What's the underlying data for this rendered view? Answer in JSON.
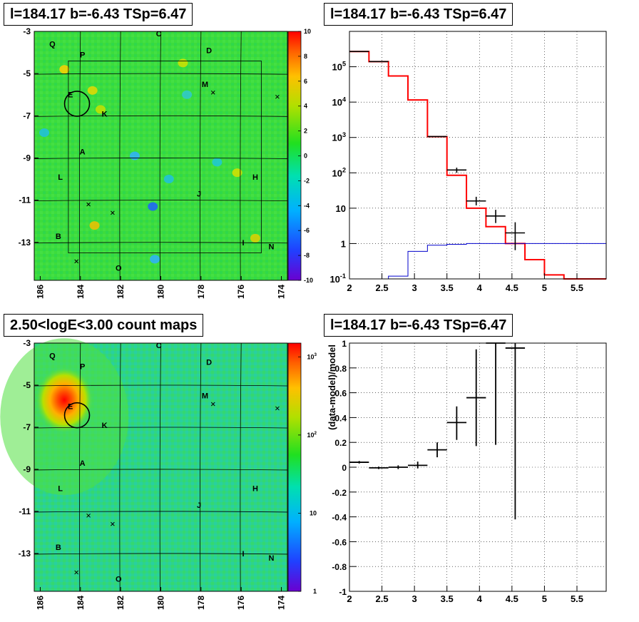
{
  "titles": {
    "top_left": "l=184.17 b=-6.43 TSp=6.47",
    "top_right": "l=184.17 b=-6.43 TSp=6.47",
    "bottom_left": "2.50<logE<3.00 count maps",
    "bottom_right": "l=184.17 b=-6.43 TSp=6.47"
  },
  "chart_data": [
    {
      "type": "heatmap",
      "name": "residual map",
      "title": "l=184.17 b=-6.43 TSp=6.47",
      "xticks": [
        "186",
        "184",
        "182",
        "180",
        "178",
        "176",
        "174"
      ],
      "yticks": [
        "-3",
        "-5",
        "-7",
        "-9",
        "-11",
        "-13"
      ],
      "xlim": [
        186.3,
        173.7
      ],
      "ylim": [
        -14.8,
        -3.0
      ],
      "colorbar": {
        "ticks": [
          "10",
          "8",
          "6",
          "4",
          "2",
          "0",
          "-2",
          "-4",
          "-6",
          "-8",
          "-10"
        ],
        "range": [
          -10,
          10
        ],
        "scale": "linear"
      },
      "source_labels": [
        {
          "label": "Q",
          "l": 185.4,
          "b": -3.6
        },
        {
          "label": "P",
          "l": 183.9,
          "b": -4.1
        },
        {
          "label": "C",
          "l": 180.1,
          "b": -3.1
        },
        {
          "label": "D",
          "l": 177.6,
          "b": -3.9
        },
        {
          "label": "M",
          "l": 177.8,
          "b": -5.5
        },
        {
          "label": "E",
          "l": 184.5,
          "b": -6.0
        },
        {
          "label": "K",
          "l": 182.8,
          "b": -6.9
        },
        {
          "label": "A",
          "l": 183.9,
          "b": -8.7
        },
        {
          "label": "L",
          "l": 185.0,
          "b": -9.9
        },
        {
          "label": "H",
          "l": 175.3,
          "b": -9.9
        },
        {
          "label": "J",
          "l": 178.1,
          "b": -10.7
        },
        {
          "label": "B",
          "l": 185.1,
          "b": -12.7
        },
        {
          "label": "I",
          "l": 175.9,
          "b": -13.0
        },
        {
          "label": "N",
          "l": 174.5,
          "b": -13.2
        },
        {
          "label": "O",
          "l": 182.1,
          "b": -14.2
        }
      ],
      "crosses": [
        {
          "l": 177.4,
          "b": -5.9
        },
        {
          "l": 174.2,
          "b": -6.1
        },
        {
          "l": 183.6,
          "b": -11.2
        },
        {
          "l": 182.4,
          "b": -11.6
        },
        {
          "l": 184.2,
          "b": -13.9
        }
      ],
      "circle": {
        "l": 184.17,
        "b": -6.43,
        "r_deg": 0.55
      },
      "roi_box": {
        "l": [
          184.6,
          175.0
        ],
        "b": [
          -4.4,
          -13.5
        ]
      }
    },
    {
      "type": "line",
      "name": "counts spectrum",
      "title": "l=184.17 b=-6.43 TSp=6.47",
      "xlim": [
        2.0,
        5.95
      ],
      "ylim": [
        0.1,
        1000000
      ],
      "yscale": "log",
      "xticks": [
        "2",
        "2.5",
        "3",
        "3.5",
        "4",
        "4.5",
        "5",
        "5.5"
      ],
      "yticks": [
        "10^-1",
        "1",
        "10",
        "10^2",
        "10^3",
        "10^4",
        "10^5"
      ],
      "bin_edges": [
        2.0,
        2.3,
        2.6,
        2.9,
        3.2,
        3.5,
        3.8,
        4.1,
        4.4,
        4.7,
        5.0,
        5.3,
        5.6,
        5.95
      ],
      "series": [
        {
          "color": "#ff0000",
          "values": [
            270000,
            140000,
            55000,
            11500,
            1050,
            85,
            10,
            3,
            1,
            0.35,
            0.13,
            0.1,
            0.1
          ]
        },
        {
          "color": "#0000cc",
          "values": [
            0.1,
            0.1,
            0.12,
            0.6,
            0.9,
            0.95,
            1.0,
            1.0,
            1.0,
            1.0,
            1.0,
            1.0,
            1.0
          ]
        }
      ],
      "data_points": [
        {
          "x": 2.15,
          "y": 270000,
          "xerr": 0.15
        },
        {
          "x": 2.45,
          "y": 140000,
          "xerr": 0.15
        },
        {
          "x": 3.35,
          "y": 1060,
          "xerr": 0.15
        },
        {
          "x": 3.65,
          "y": 120,
          "xerr": 0.15,
          "ylo": 100,
          "yhi": 140
        },
        {
          "x": 3.95,
          "y": 16,
          "xerr": 0.15,
          "ylo": 12,
          "yhi": 21
        },
        {
          "x": 4.25,
          "y": 6,
          "xerr": 0.15,
          "ylo": 3.8,
          "yhi": 9
        },
        {
          "x": 4.55,
          "y": 2,
          "xerr": 0.15,
          "ylo": 0.65,
          "yhi": 4
        }
      ]
    },
    {
      "type": "heatmap",
      "name": "count map",
      "title": "2.50<logE<3.00 count maps",
      "xticks": [
        "186",
        "184",
        "182",
        "180",
        "178",
        "176",
        "174"
      ],
      "yticks": [
        "-3",
        "-5",
        "-7",
        "-9",
        "-11",
        "-13"
      ],
      "xlim": [
        186.3,
        173.7
      ],
      "ylim": [
        -14.8,
        -3.0
      ],
      "colorbar": {
        "ticks": [
          "10^3",
          "10^2",
          "10",
          "1"
        ],
        "range": [
          1,
          1500
        ],
        "scale": "log"
      },
      "source_labels": [
        {
          "label": "Q",
          "l": 185.4,
          "b": -3.6
        },
        {
          "label": "P",
          "l": 183.9,
          "b": -4.1
        },
        {
          "label": "C",
          "l": 180.1,
          "b": -3.1
        },
        {
          "label": "D",
          "l": 177.6,
          "b": -3.9
        },
        {
          "label": "M",
          "l": 177.8,
          "b": -5.5
        },
        {
          "label": "E",
          "l": 184.5,
          "b": -6.0
        },
        {
          "label": "K",
          "l": 182.8,
          "b": -6.9
        },
        {
          "label": "A",
          "l": 183.9,
          "b": -8.7
        },
        {
          "label": "L",
          "l": 185.0,
          "b": -9.9
        },
        {
          "label": "H",
          "l": 175.3,
          "b": -9.9
        },
        {
          "label": "J",
          "l": 178.1,
          "b": -10.7
        },
        {
          "label": "B",
          "l": 185.1,
          "b": -12.7
        },
        {
          "label": "I",
          "l": 175.9,
          "b": -13.0
        },
        {
          "label": "N",
          "l": 174.5,
          "b": -13.2
        },
        {
          "label": "O",
          "l": 182.1,
          "b": -14.2
        }
      ],
      "crosses": [
        {
          "l": 177.4,
          "b": -5.9
        },
        {
          "l": 174.2,
          "b": -6.1
        },
        {
          "l": 183.6,
          "b": -11.2
        },
        {
          "l": 182.4,
          "b": -11.6
        },
        {
          "l": 184.2,
          "b": -13.9
        }
      ],
      "circle": {
        "l": 184.17,
        "b": -6.43,
        "r_deg": 0.55
      },
      "hotspot": {
        "l": 184.8,
        "b": -5.7,
        "peak": 1500
      }
    },
    {
      "type": "scatter",
      "name": "residual fraction",
      "title": "l=184.17 b=-6.43 TSp=6.47",
      "ylabel": "(data-model)/model",
      "xlim": [
        2.0,
        5.95
      ],
      "ylim": [
        -1,
        1
      ],
      "xticks": [
        "2",
        "2.5",
        "3",
        "3.5",
        "4",
        "4.5",
        "5",
        "5.5"
      ],
      "yticks": [
        "-1",
        "-0.8",
        "-0.6",
        "-0.4",
        "-0.2",
        "0",
        "0.2",
        "0.4",
        "0.6",
        "0.8",
        "1"
      ],
      "points": [
        {
          "x": 2.15,
          "y": 0.04,
          "xerr": 0.15,
          "ylo": 0.03,
          "yhi": 0.05
        },
        {
          "x": 2.45,
          "y": -0.005,
          "xerr": 0.15,
          "ylo": -0.015,
          "yhi": 0.005
        },
        {
          "x": 2.75,
          "y": 0.0,
          "xerr": 0.15,
          "ylo": -0.015,
          "yhi": 0.015
        },
        {
          "x": 3.05,
          "y": 0.015,
          "xerr": 0.15,
          "ylo": -0.01,
          "yhi": 0.045
        },
        {
          "x": 3.35,
          "y": 0.14,
          "xerr": 0.15,
          "ylo": 0.08,
          "yhi": 0.2
        },
        {
          "x": 3.65,
          "y": 0.36,
          "xerr": 0.15,
          "ylo": 0.22,
          "yhi": 0.49
        },
        {
          "x": 3.95,
          "y": 0.56,
          "xerr": 0.15,
          "ylo": 0.17,
          "yhi": 0.95
        },
        {
          "x": 4.25,
          "y": 1.0,
          "xerr": 0.15,
          "ylo": 0.18,
          "yhi": 1.0
        },
        {
          "x": 4.55,
          "y": 0.96,
          "xerr": 0.15,
          "ylo": -0.42,
          "yhi": 1.0
        }
      ]
    }
  ]
}
